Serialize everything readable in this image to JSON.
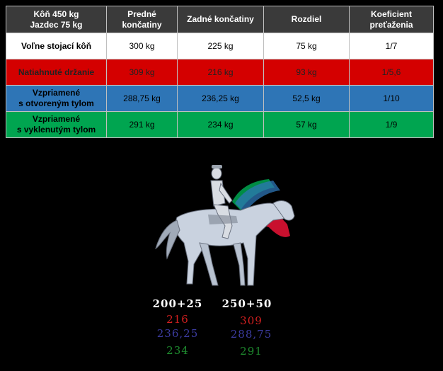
{
  "table": {
    "headers": [
      [
        "Kôň 450 kg",
        "Jazdec 75 kg"
      ],
      [
        "Predné",
        "končatiny"
      ],
      [
        "Zadné končatiny"
      ],
      [
        "Rozdiel"
      ],
      [
        "Koeficient",
        "preťaženia"
      ]
    ],
    "rows": [
      {
        "label": [
          "Voľne stojací kôň"
        ],
        "front": "300 kg",
        "rear": "225 kg",
        "diff": "75 kg",
        "coef": "1/7",
        "color": "#ffffff"
      },
      {
        "label": [
          "Natiahnuté držanie"
        ],
        "front": "309 kg",
        "rear": "216 kg",
        "diff": "93 kg",
        "coef": "1/5,6",
        "color": "#d40000"
      },
      {
        "label": [
          "Vzpriamené",
          "s otvoreným tylom"
        ],
        "front": "288,75 kg",
        "rear": "236,25 kg",
        "diff": "52,5 kg",
        "coef": "1/10",
        "color": "#2e75b6"
      },
      {
        "label": [
          "Vzpriamené",
          "s vyklenutým tylom"
        ],
        "front": "291 kg",
        "rear": "234 kg",
        "diff": "57 kg",
        "coef": "1/9",
        "color": "#00a550"
      }
    ]
  },
  "figure": {
    "rear_base": "200+25",
    "front_base": "250+50",
    "rear_values": [
      "216",
      "236,25",
      "234"
    ],
    "front_values": [
      "309",
      "288,75",
      "291"
    ],
    "colors": {
      "red": "#d42020",
      "blue": "#3c3ca0",
      "green": "#1e8a2e"
    }
  }
}
